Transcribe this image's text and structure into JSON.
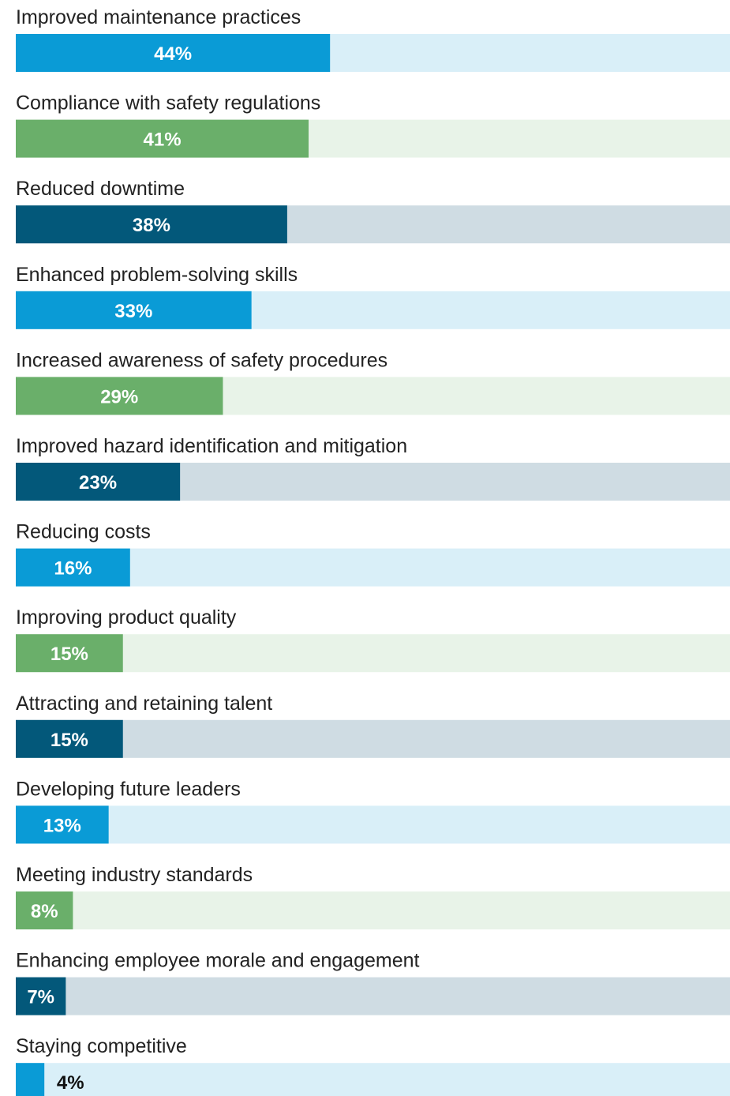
{
  "chart_data": {
    "type": "bar",
    "orientation": "horizontal",
    "categories": [
      "Improved maintenance practices",
      "Compliance with safety regulations",
      "Reduced downtime",
      "Enhanced problem-solving skills",
      "Increased awareness of safety procedures",
      "Improved hazard identification and mitigation",
      "Reducing costs",
      "Improving product quality",
      "Attracting and retaining talent",
      "Developing future leaders",
      "Meeting industry standards",
      "Enhancing employee morale and engagement",
      "Staying competitive"
    ],
    "values": [
      44,
      41,
      38,
      33,
      29,
      23,
      16,
      15,
      15,
      13,
      8,
      7,
      4
    ],
    "value_labels": [
      "44%",
      "41%",
      "38%",
      "33%",
      "29%",
      "23%",
      "16%",
      "15%",
      "15%",
      "13%",
      "8%",
      "7%",
      "4%"
    ],
    "colors": [
      "#0a9bd6",
      "#6aaf6a",
      "#03587a"
    ],
    "track_colors": [
      "#d9eff8",
      "#e8f3e8",
      "#cfdce3"
    ],
    "xlim": [
      0,
      100
    ]
  }
}
